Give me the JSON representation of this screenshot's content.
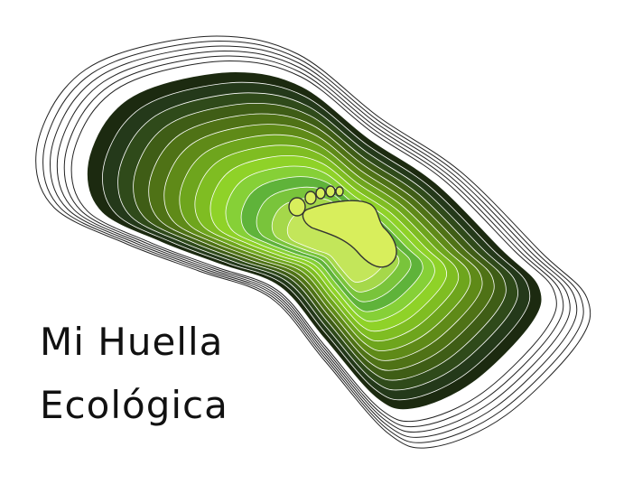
{
  "title": {
    "line1": "Mi Huella",
    "line2": "Ecológica"
  },
  "logo": {
    "icon": "footprint-contour-icon",
    "outline_color": "#222222",
    "band_colors": [
      "#1c2a10",
      "#24391a",
      "#2f4a1a",
      "#3f5d16",
      "#4f7216",
      "#5f8a18",
      "#6ea51d",
      "#7fbd22",
      "#8fd228",
      "#86d037",
      "#5fb33a",
      "#79c43b",
      "#a5d84a",
      "#c3e65a"
    ],
    "foot_color": "#d8ee5c"
  }
}
